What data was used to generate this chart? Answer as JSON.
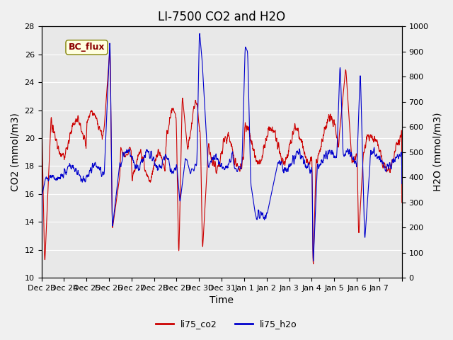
{
  "title": "LI-7500 CO2 and H2O",
  "xlabel": "Time",
  "ylabel_left": "CO2 (mmol/m3)",
  "ylabel_right": "H2O (mmol/m3)",
  "ylim_left": [
    10,
    28
  ],
  "ylim_right": [
    0,
    1000
  ],
  "yticks_left": [
    10,
    12,
    14,
    16,
    18,
    20,
    22,
    24,
    26,
    28
  ],
  "yticks_right": [
    0,
    100,
    200,
    300,
    400,
    500,
    600,
    700,
    800,
    900,
    1000
  ],
  "xtick_labels": [
    "Dec 23",
    "Dec 24",
    "Dec 25",
    "Dec 26",
    "Dec 27",
    "Dec 28",
    "Dec 29",
    "Dec 30",
    "Dec 31",
    "Jan 1",
    "Jan 2",
    "Jan 3",
    "Jan 4",
    "Jan 5",
    "Jan 6",
    "Jan 7"
  ],
  "annotation_text": "BC_flux",
  "legend_labels": [
    "li75_co2",
    "li75_h2o"
  ],
  "co2_color": "#cc0000",
  "h2o_color": "#0000cc",
  "title_fontsize": 12,
  "label_fontsize": 10,
  "tick_fontsize": 8
}
